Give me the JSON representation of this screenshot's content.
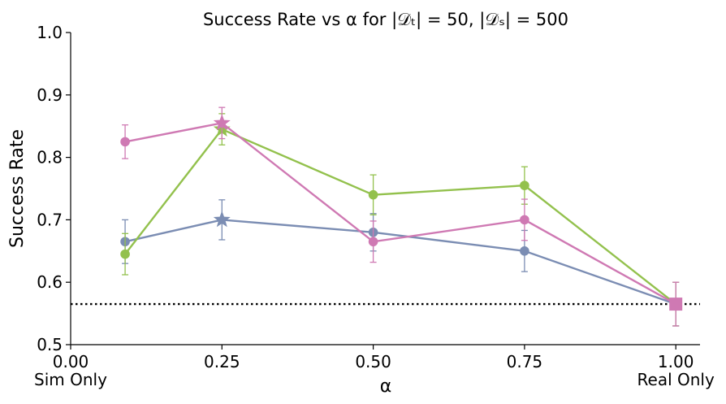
{
  "chart_data": {
    "type": "line",
    "title": "Success Rate vs α for |𝒟ₜ| = 50, |𝒟ₛ| = 500",
    "xlabel": "α",
    "ylabel": "Success Rate",
    "xlim": [
      0.0,
      1.04
    ],
    "ylim": [
      0.5,
      1.0
    ],
    "xticks": [
      0.0,
      0.25,
      0.5,
      0.75,
      1.0
    ],
    "xtick_labels": [
      "0.00",
      "0.25",
      "0.50",
      "0.75",
      "1.00"
    ],
    "yticks": [
      0.5,
      0.6,
      0.7,
      0.8,
      0.9,
      1.0
    ],
    "ytick_labels": [
      "0.5",
      "0.6",
      "0.7",
      "0.8",
      "0.9",
      "1.0"
    ],
    "x_annotations": [
      {
        "x": 0.0,
        "text": "Sim Only"
      },
      {
        "x": 1.0,
        "text": "Real Only"
      }
    ],
    "baseline": {
      "y": 0.565,
      "style": "dotted",
      "color": "#000000"
    },
    "grid": false,
    "series": [
      {
        "name": "series-blue",
        "color": "#7b8db3",
        "x": [
          0.09,
          0.25,
          0.5,
          0.75,
          1.0
        ],
        "y": [
          0.665,
          0.7,
          0.68,
          0.65,
          0.565
        ],
        "err": [
          0.035,
          0.032,
          0.03,
          0.033,
          0.035
        ],
        "star_index": 1
      },
      {
        "name": "series-green",
        "color": "#93c14d",
        "x": [
          0.09,
          0.25,
          0.5,
          0.75,
          1.0
        ],
        "y": [
          0.645,
          0.845,
          0.74,
          0.755,
          0.565
        ],
        "err": [
          0.033,
          0.025,
          0.032,
          0.03,
          0.035
        ],
        "star_index": 1
      },
      {
        "name": "series-pink",
        "color": "#cf79b3",
        "x": [
          0.09,
          0.25,
          0.5,
          0.75,
          1.0
        ],
        "y": [
          0.825,
          0.855,
          0.665,
          0.7,
          0.565
        ],
        "err": [
          0.027,
          0.025,
          0.033,
          0.033,
          0.035
        ],
        "star_index": 1
      }
    ],
    "end_marker": {
      "x": 1.0,
      "y": 0.565,
      "shape": "square",
      "color": "#cf79b3"
    }
  }
}
